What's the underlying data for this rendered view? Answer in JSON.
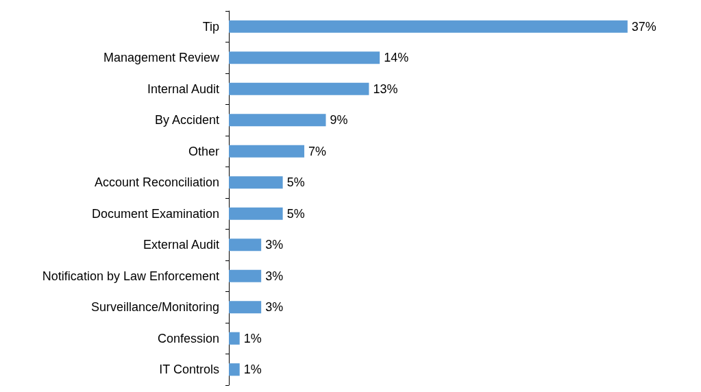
{
  "chart_data": {
    "type": "bar",
    "orientation": "horizontal",
    "categories": [
      "Tip",
      "Management Review",
      "Internal Audit",
      "By Accident",
      "Other",
      "Account Reconciliation",
      "Document Examination",
      "External Audit",
      "Notification by Law Enforcement",
      "Surveillance/Monitoring",
      "Confession",
      "IT Controls"
    ],
    "values": [
      37,
      14,
      13,
      9,
      7,
      5,
      5,
      3,
      3,
      3,
      1,
      1
    ],
    "value_labels": [
      "37%",
      "14%",
      "13%",
      "9%",
      "7%",
      "5%",
      "5%",
      "3%",
      "3%",
      "3%",
      "1%",
      "1%"
    ],
    "color": "#5b9bd5",
    "tick_labels": "y"
  }
}
